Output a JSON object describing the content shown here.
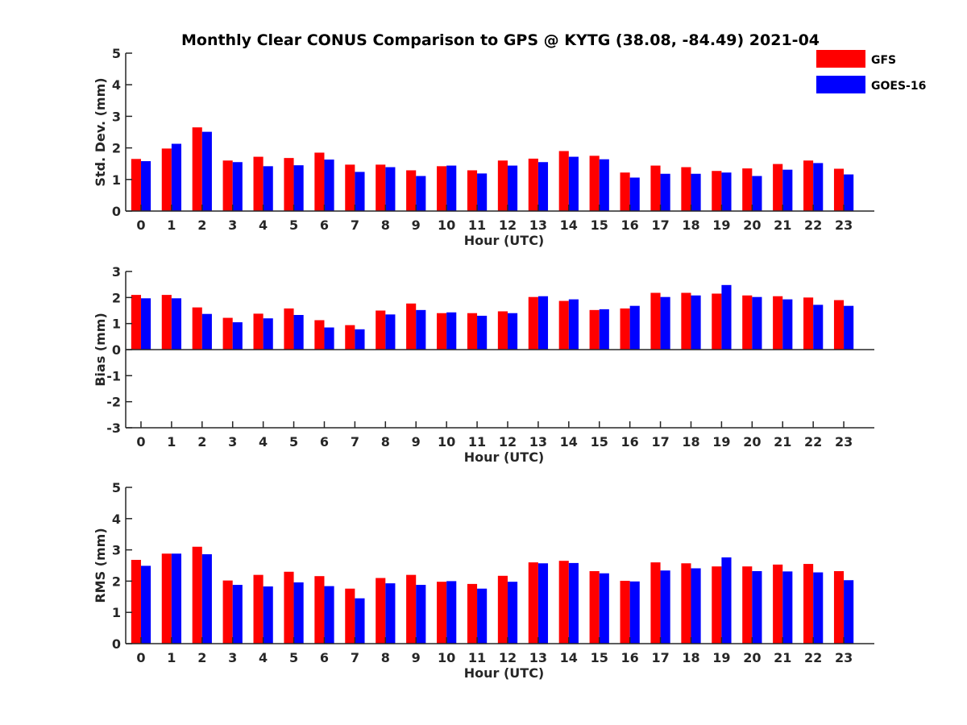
{
  "figure_title": "Monthly Clear CONUS Comparison to GPS @ KYTG (38.08, -84.49) 2021-04",
  "legend": {
    "placement": "top-right",
    "entries": [
      {
        "label": "GFS",
        "color": "#ff0000"
      },
      {
        "label": "GOES-16",
        "color": "#0000ff"
      }
    ]
  },
  "chart_data": [
    {
      "type": "bar",
      "title": "Monthly Clear CONUS Comparison to GPS @ KYTG (38.08, -84.49) 2021-04",
      "xlabel": "Hour (UTC)",
      "ylabel": "Std. Dev. (mm)",
      "ylim": [
        0,
        5
      ],
      "yticks": [
        "0",
        "1",
        "2",
        "3",
        "4",
        "5"
      ],
      "categories": [
        "0",
        "1",
        "2",
        "3",
        "4",
        "5",
        "6",
        "7",
        "8",
        "9",
        "10",
        "11",
        "12",
        "13",
        "14",
        "15",
        "16",
        "17",
        "18",
        "19",
        "20",
        "21",
        "22",
        "23"
      ],
      "series": [
        {
          "name": "GFS",
          "color": "#ff0000",
          "values": [
            1.65,
            1.98,
            2.65,
            1.6,
            1.72,
            1.68,
            1.85,
            1.47,
            1.47,
            1.29,
            1.42,
            1.29,
            1.6,
            1.66,
            1.9,
            1.75,
            1.22,
            1.44,
            1.39,
            1.27,
            1.35,
            1.49,
            1.6,
            1.34
          ]
        },
        {
          "name": "GOES-16",
          "color": "#0000ff",
          "values": [
            1.58,
            2.13,
            2.51,
            1.55,
            1.42,
            1.45,
            1.63,
            1.24,
            1.39,
            1.11,
            1.44,
            1.19,
            1.44,
            1.55,
            1.72,
            1.64,
            1.06,
            1.18,
            1.18,
            1.22,
            1.11,
            1.31,
            1.52,
            1.16
          ]
        }
      ],
      "grid": false
    },
    {
      "type": "bar",
      "xlabel": "Hour (UTC)",
      "ylabel": "Bias (mm)",
      "ylim": [
        -3,
        3
      ],
      "yticks": [
        "-3",
        "-2",
        "-1",
        "0",
        "1",
        "2",
        "3"
      ],
      "categories": [
        "0",
        "1",
        "2",
        "3",
        "4",
        "5",
        "6",
        "7",
        "8",
        "9",
        "10",
        "11",
        "12",
        "13",
        "14",
        "15",
        "16",
        "17",
        "18",
        "19",
        "20",
        "21",
        "22",
        "23"
      ],
      "series": [
        {
          "name": "GFS",
          "color": "#ff0000",
          "values": [
            2.1,
            2.1,
            1.62,
            1.22,
            1.38,
            1.58,
            1.13,
            0.94,
            1.5,
            1.77,
            1.4,
            1.4,
            1.47,
            2.02,
            1.87,
            1.52,
            1.58,
            2.18,
            2.18,
            2.15,
            2.08,
            2.05,
            2.0,
            1.9
          ]
        },
        {
          "name": "GOES-16",
          "color": "#0000ff",
          "values": [
            1.97,
            1.97,
            1.37,
            1.05,
            1.2,
            1.33,
            0.85,
            0.78,
            1.35,
            1.52,
            1.43,
            1.3,
            1.4,
            2.05,
            1.93,
            1.55,
            1.68,
            2.02,
            2.08,
            2.48,
            2.02,
            1.93,
            1.72,
            1.68
          ]
        }
      ],
      "grid": false
    },
    {
      "type": "bar",
      "xlabel": "Hour (UTC)",
      "ylabel": "RMS (mm)",
      "ylim": [
        0,
        5
      ],
      "yticks": [
        "0",
        "1",
        "2",
        "3",
        "4",
        "5"
      ],
      "categories": [
        "0",
        "1",
        "2",
        "3",
        "4",
        "5",
        "6",
        "7",
        "8",
        "9",
        "10",
        "11",
        "12",
        "13",
        "14",
        "15",
        "16",
        "17",
        "18",
        "19",
        "20",
        "21",
        "22",
        "23"
      ],
      "series": [
        {
          "name": "GFS",
          "color": "#ff0000",
          "values": [
            2.68,
            2.88,
            3.1,
            2.02,
            2.2,
            2.3,
            2.16,
            1.76,
            2.1,
            2.2,
            1.98,
            1.91,
            2.17,
            2.6,
            2.65,
            2.32,
            2.01,
            2.6,
            2.57,
            2.47,
            2.47,
            2.53,
            2.55,
            2.32
          ]
        },
        {
          "name": "GOES-16",
          "color": "#0000ff",
          "values": [
            2.49,
            2.88,
            2.86,
            1.88,
            1.83,
            1.96,
            1.84,
            1.45,
            1.93,
            1.88,
            2.0,
            1.76,
            1.98,
            2.57,
            2.58,
            2.25,
            1.99,
            2.34,
            2.41,
            2.76,
            2.32,
            2.31,
            2.28,
            2.03
          ]
        }
      ],
      "grid": false
    }
  ]
}
